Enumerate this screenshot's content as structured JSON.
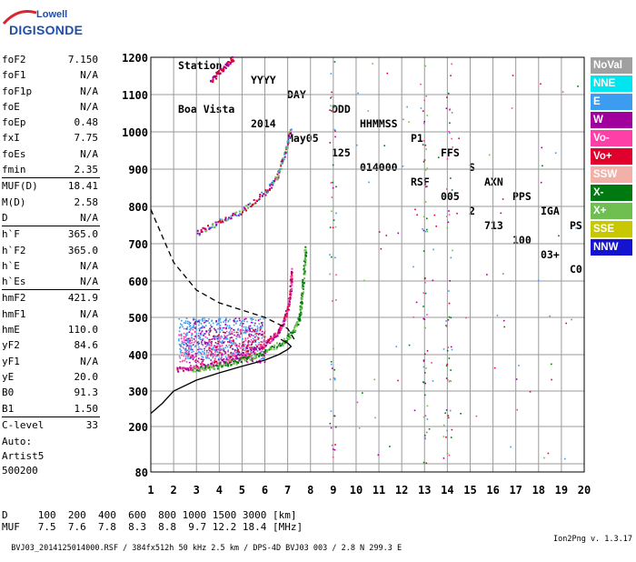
{
  "logo": {
    "line1": "Lowell",
    "line2": "DIGISONDE"
  },
  "header": {
    "labels": [
      "Station",
      "YYYY",
      "DAY",
      "DDD",
      "HHMMSS",
      "P1",
      "FFS",
      "S",
      "AXN",
      "PPS",
      "IGA",
      "PS"
    ],
    "values": [
      "Boa Vista",
      "2014",
      "May05",
      "125",
      "014000",
      "RSF",
      "005",
      "2",
      "713",
      "100",
      "03+",
      "C0"
    ]
  },
  "params": [
    {
      "label": "foF2",
      "value": "7.150"
    },
    {
      "label": "foF1",
      "value": "N/A"
    },
    {
      "label": "foF1p",
      "value": "N/A"
    },
    {
      "label": "foE",
      "value": "N/A"
    },
    {
      "label": "foEp",
      "value": "0.48"
    },
    {
      "label": "fxI",
      "value": "7.75"
    },
    {
      "label": "foEs",
      "value": "N/A"
    },
    {
      "label": "fmin",
      "value": "2.35"
    },
    {
      "sep": true
    },
    {
      "label": "MUF(D)",
      "value": "18.41"
    },
    {
      "label": "M(D)",
      "value": "2.58"
    },
    {
      "label": "D",
      "value": "N/A"
    },
    {
      "sep": true
    },
    {
      "label": "h`F",
      "value": "365.0"
    },
    {
      "label": "h`F2",
      "value": "365.0"
    },
    {
      "label": "h`E",
      "value": "N/A"
    },
    {
      "label": "h`Es",
      "value": "N/A"
    },
    {
      "sep": true
    },
    {
      "label": "hmF2",
      "value": "421.9"
    },
    {
      "label": "hmF1",
      "value": "N/A"
    },
    {
      "label": "hmE",
      "value": "110.0"
    },
    {
      "label": "yF2",
      "value": "84.6"
    },
    {
      "label": "yF1",
      "value": "N/A"
    },
    {
      "label": "yE",
      "value": "20.0"
    },
    {
      "label": "B0",
      "value": "91.3"
    },
    {
      "label": "B1",
      "value": "1.50"
    },
    {
      "sep": true
    },
    {
      "label": "C-level",
      "value": "33"
    }
  ],
  "notes": {
    "line1": "Auto:",
    "line2": "Artist5",
    "line3": "500200"
  },
  "legend": [
    {
      "label": "NoVal",
      "color": "#a0a0a0"
    },
    {
      "label": "NNE",
      "color": "#00e5ee"
    },
    {
      "label": "E",
      "color": "#3c9cf0"
    },
    {
      "label": "W",
      "color": "#a0009c"
    },
    {
      "label": "Vo-",
      "color": "#ff3fa8"
    },
    {
      "label": "Vo+",
      "color": "#e0002c"
    },
    {
      "label": "SSW",
      "color": "#f2b0a8"
    },
    {
      "label": "X-",
      "color": "#007a10"
    },
    {
      "label": "X+",
      "color": "#6fbf50"
    },
    {
      "label": "SSE",
      "color": "#c8c800"
    },
    {
      "label": "NNW",
      "color": "#1414d0"
    }
  ],
  "dmuf": {
    "d_line": "D     100  200  400  600  800 1000 1500 3000 [km]",
    "muf_line": "MUF   7.5  7.6  7.8  8.3  8.8  9.7 12.2 18.4 [MHz]"
  },
  "footer": {
    "left": "BVJ03_2014125014000.RSF / 384fx512h 50 kHz 2.5 km / DPS-4D BVJ03 003 / 2.8 N 299.3 E",
    "right": "Ion2Png v. 1.3.17"
  },
  "chart_data": {
    "type": "scatter",
    "xlim": [
      1,
      20
    ],
    "ylim": [
      80,
      1200
    ],
    "x_ticks": [
      1,
      2,
      3,
      4,
      5,
      6,
      7,
      8,
      9,
      10,
      11,
      12,
      13,
      14,
      15,
      16,
      17,
      18,
      19,
      20
    ],
    "y_ticks": [
      80,
      100,
      200,
      300,
      400,
      500,
      600,
      700,
      800,
      900,
      1000,
      1100,
      1200
    ],
    "y_tick_labels": [
      "80",
      "",
      "200",
      "300",
      "400",
      "500",
      "600",
      "700",
      "800",
      "900",
      "1000",
      "1100",
      "1200"
    ],
    "traces": {
      "o_trace_f2": [
        [
          2.1,
          360
        ],
        [
          3.0,
          368
        ],
        [
          4.0,
          380
        ],
        [
          5.0,
          400
        ],
        [
          6.0,
          430
        ],
        [
          6.5,
          458
        ],
        [
          6.8,
          490
        ],
        [
          7.0,
          530
        ],
        [
          7.1,
          580
        ],
        [
          7.15,
          630
        ]
      ],
      "x_trace_f2": [
        [
          2.8,
          360
        ],
        [
          3.7,
          368
        ],
        [
          4.7,
          382
        ],
        [
          5.7,
          402
        ],
        [
          6.7,
          432
        ],
        [
          7.2,
          462
        ],
        [
          7.5,
          500
        ],
        [
          7.6,
          560
        ],
        [
          7.7,
          640
        ],
        [
          7.75,
          690
        ]
      ],
      "o_trace_2hop": [
        [
          3.0,
          730
        ],
        [
          4.0,
          760
        ],
        [
          5.0,
          790
        ],
        [
          6.0,
          840
        ],
        [
          6.5,
          880
        ],
        [
          6.9,
          950
        ],
        [
          7.1,
          1010
        ]
      ],
      "high_trace": [
        [
          3.6,
          1140
        ],
        [
          4.1,
          1170
        ],
        [
          4.6,
          1200
        ]
      ]
    },
    "profile": [
      [
        1,
        237
      ],
      [
        1.5,
        265
      ],
      [
        2,
        300
      ],
      [
        3,
        330
      ],
      [
        4,
        350
      ],
      [
        5,
        368
      ],
      [
        6,
        385
      ],
      [
        6.6,
        400
      ],
      [
        7.0,
        414
      ],
      [
        7.15,
        422
      ],
      [
        7.0,
        431
      ],
      [
        6.7,
        441
      ]
    ],
    "muf_curve": [
      [
        1,
        792
      ],
      [
        1.5,
        720
      ],
      [
        2,
        650
      ],
      [
        3,
        575
      ],
      [
        4,
        540
      ],
      [
        5,
        520
      ],
      [
        6,
        500
      ],
      [
        7,
        470
      ],
      [
        7.3,
        440
      ]
    ],
    "clouds": [
      {
        "x": [
          2.2,
          6.0
        ],
        "y": [
          390,
          500
        ],
        "color": "#3c9cf0",
        "count": 500
      },
      {
        "x": [
          2.2,
          6.0
        ],
        "y": [
          380,
          470
        ],
        "color": "#ff3fa8",
        "count": 220
      },
      {
        "x": [
          2.5,
          6.0
        ],
        "y": [
          380,
          500
        ],
        "color": "#a0009c",
        "count": 170
      },
      {
        "x": [
          3.5,
          6.0
        ],
        "y": [
          400,
          470
        ],
        "color": "#e0002c",
        "count": 80
      }
    ]
  }
}
